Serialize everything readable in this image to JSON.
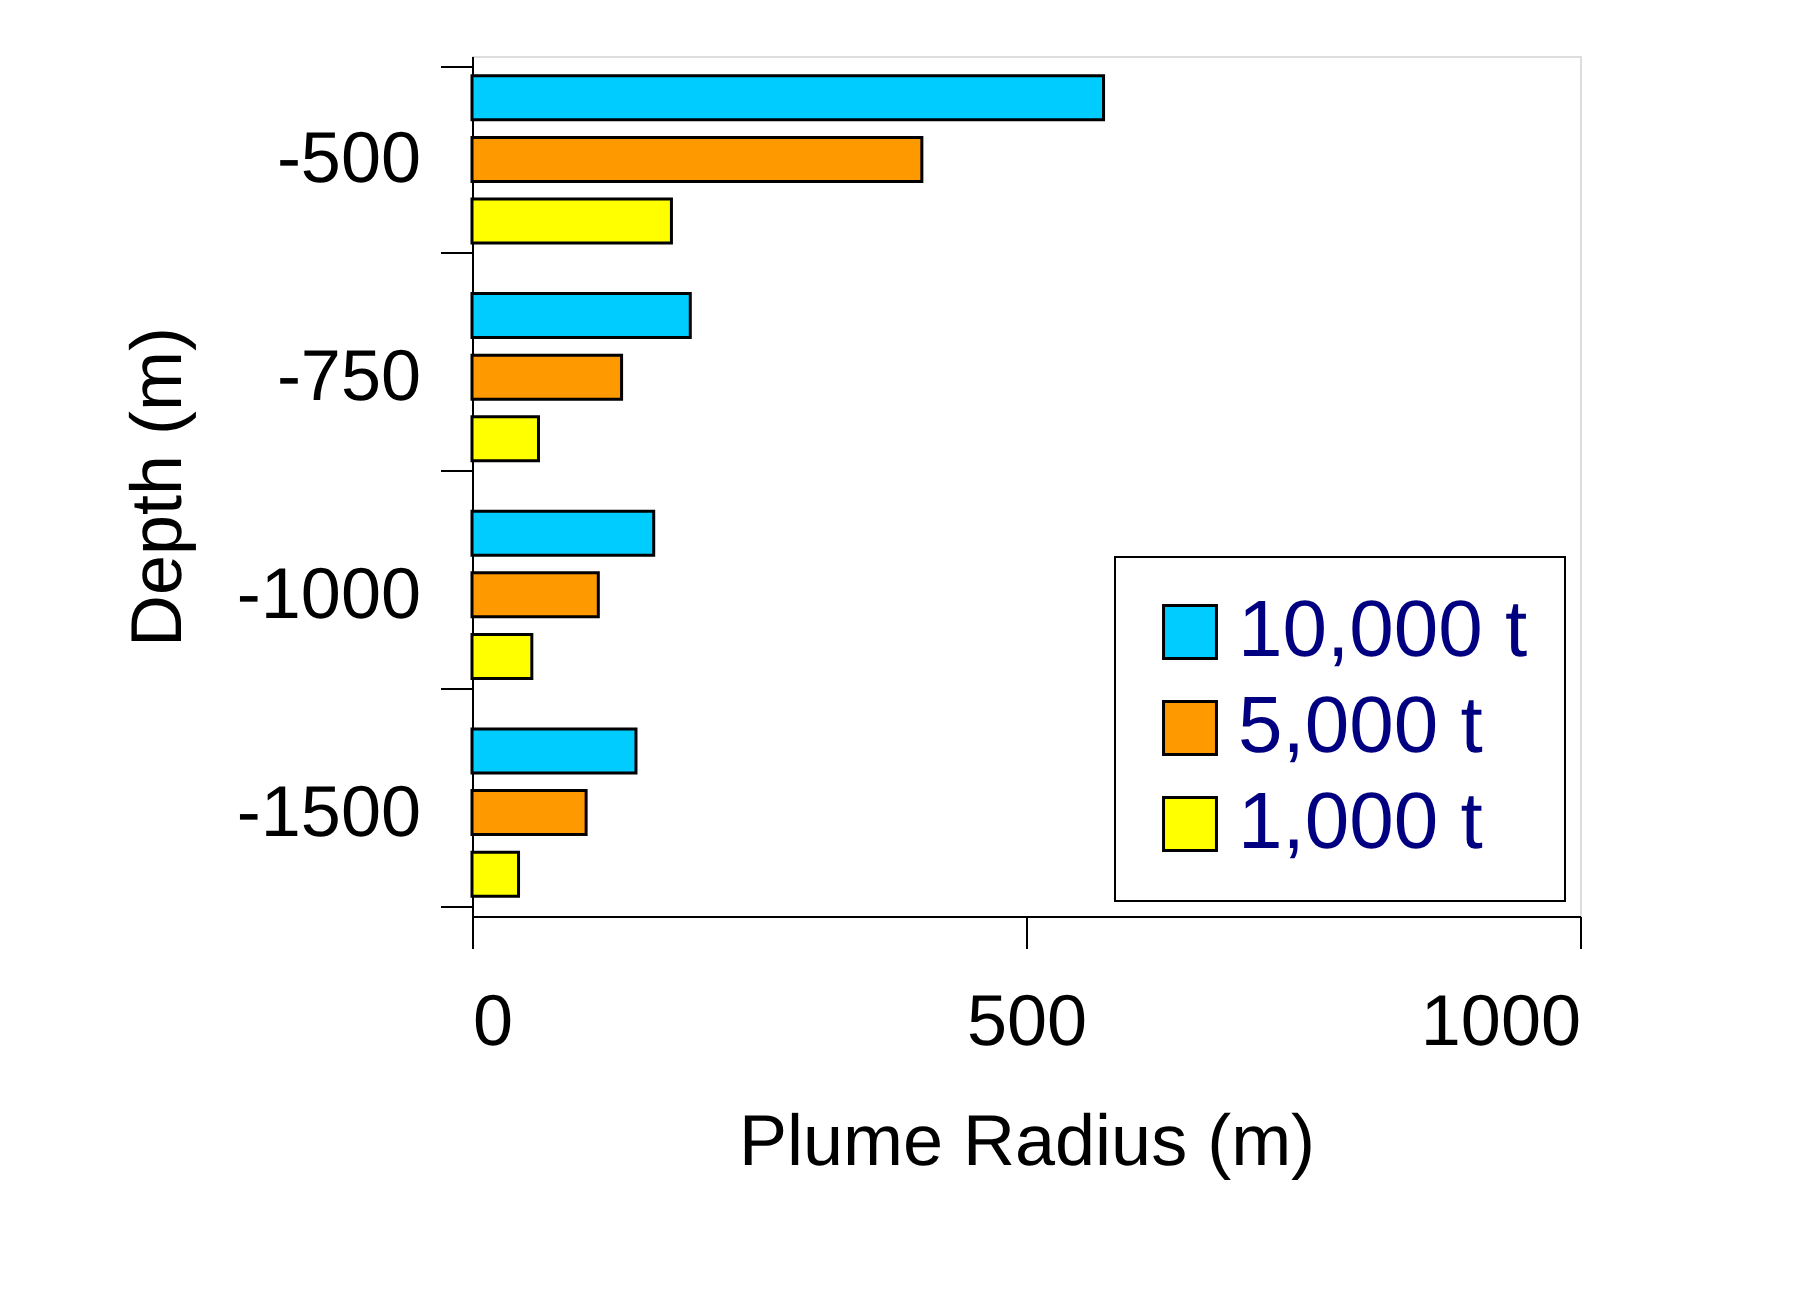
{
  "chart_data": {
    "type": "bar",
    "orientation": "horizontal",
    "xlabel": "Plume Radius (m)",
    "ylabel": "Depth (m)",
    "categories": [
      "-500",
      "-750",
      "-1000",
      "-1500"
    ],
    "series": [
      {
        "name": "10,000 t",
        "color": "#00ccff",
        "values": [
          570,
          197,
          164,
          148
        ]
      },
      {
        "name": "5,000 t",
        "color": "#ff9900",
        "values": [
          406,
          135,
          114,
          103
        ]
      },
      {
        "name": "1,000 t",
        "color": "#ffff00",
        "values": [
          180,
          60,
          54,
          42
        ]
      }
    ],
    "xlim": [
      0,
      1000
    ],
    "xticks": [
      0,
      500,
      1000
    ],
    "grid": false,
    "legend": "bottom right"
  }
}
